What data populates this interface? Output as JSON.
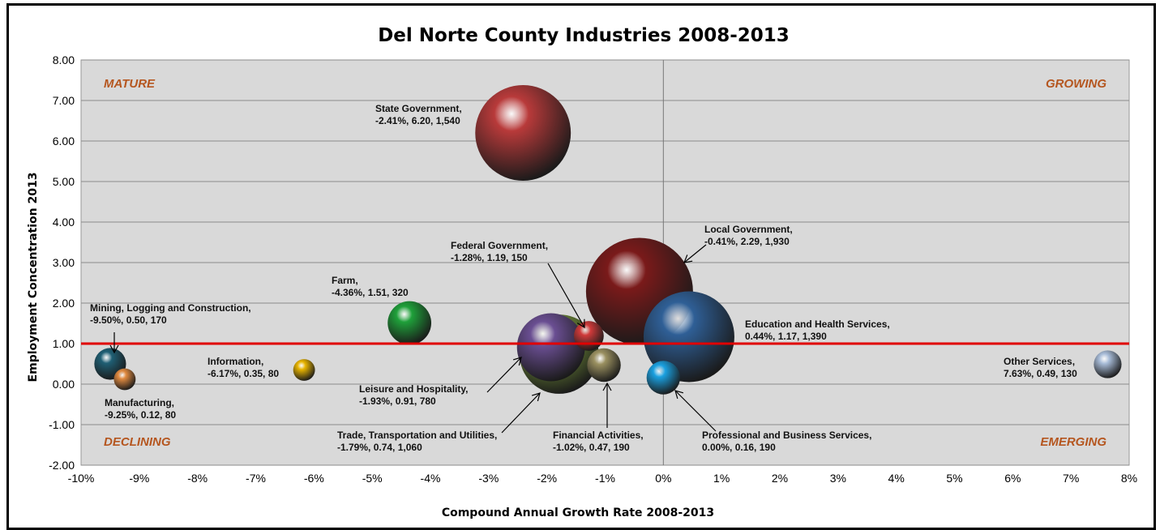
{
  "chart_data": {
    "type": "scatter",
    "title": "Del Norte County Industries 2008-2013",
    "xlabel": "Compound Annual Growth Rate 2008-2013",
    "ylabel": "Employment Concentration 2013",
    "xlim": [
      -10,
      8
    ],
    "ylim": [
      -2,
      8
    ],
    "x_ticks": [
      "-10%",
      "-9%",
      "-8%",
      "-7%",
      "-6%",
      "-5%",
      "-4%",
      "-3%",
      "-2%",
      "-1%",
      "0%",
      "1%",
      "2%",
      "3%",
      "4%",
      "5%",
      "6%",
      "7%",
      "8%"
    ],
    "y_ticks": [
      "-2.00",
      "-1.00",
      "0.00",
      "1.00",
      "2.00",
      "3.00",
      "4.00",
      "5.00",
      "6.00",
      "7.00",
      "8.00"
    ],
    "grid": "horizontal",
    "reference_line_y": 1.0,
    "reference_line_color": "#e00000",
    "plot_background": "#d9d9d9",
    "quadrants": {
      "top_left": "MATURE",
      "top_right": "GROWING",
      "bottom_left": "DECLINING",
      "bottom_right": "EMERGING"
    },
    "points": [
      {
        "name": "State Government",
        "x": -2.41,
        "y": 6.2,
        "size": 1540,
        "color": "#b83a3a",
        "label1": "State Government,",
        "label2": "-2.41%, 6.20, 1,540"
      },
      {
        "name": "Local Government",
        "x": -0.41,
        "y": 2.29,
        "size": 1930,
        "color": "#7a1a1a",
        "label1": "Local Government,",
        "label2": "-0.41%, 2.29, 1,930"
      },
      {
        "name": "Education and Health Services",
        "x": 0.44,
        "y": 1.17,
        "size": 1390,
        "color": "#2f5f96",
        "label1": "Education and Health Services,",
        "label2": "0.44%, 1.17, 1,390"
      },
      {
        "name": "Trade, Transportation and Utilities",
        "x": -1.79,
        "y": 0.74,
        "size": 1060,
        "color": "#7a9a3c",
        "label1": "Trade, Transportation and Utilities,",
        "label2": "-1.79%, 0.74, 1,060"
      },
      {
        "name": "Leisure and Hospitality",
        "x": -1.93,
        "y": 0.91,
        "size": 780,
        "color": "#6a4e92",
        "label1": "Leisure and Hospitality,",
        "label2": "-1.93%, 0.91, 780"
      },
      {
        "name": "Farm",
        "x": -4.36,
        "y": 1.51,
        "size": 320,
        "color": "#1fa03a",
        "label1": "Farm,",
        "label2": "-4.36%, 1.51, 320"
      },
      {
        "name": "Mining, Logging and Construction",
        "x": -9.5,
        "y": 0.5,
        "size": 170,
        "color": "#1f5f74",
        "label1": "Mining, Logging  and Construction,",
        "label2": "-9.50%, 0.50, 170"
      },
      {
        "name": "Federal Government",
        "x": -1.28,
        "y": 1.19,
        "size": 150,
        "color": "#d03a3a",
        "label1": "Federal Government,",
        "label2": "-1.28%, 1.19, 150"
      },
      {
        "name": "Financial Activities",
        "x": -1.02,
        "y": 0.47,
        "size": 190,
        "color": "#9a9060",
        "label1": "Financial Activities,",
        "label2": "-1.02%, 0.47, 190"
      },
      {
        "name": "Professional and Business Services",
        "x": 0.0,
        "y": 0.16,
        "size": 190,
        "color": "#1aa0e0",
        "label1": "Professional and Business Services,",
        "label2": "0.00%, 0.16, 190"
      },
      {
        "name": "Other Services",
        "x": 7.63,
        "y": 0.49,
        "size": 130,
        "color": "#a8bcd8",
        "label1": "Other Services,",
        "label2": "7.63%, 0.49, 130"
      },
      {
        "name": "Information",
        "x": -6.17,
        "y": 0.35,
        "size": 80,
        "color": "#e8b400",
        "label1": "Information,",
        "label2": "-6.17%, 0.35, 80"
      },
      {
        "name": "Manufacturing",
        "x": -9.25,
        "y": 0.12,
        "size": 80,
        "color": "#e08a40",
        "label1": "Manufacturing,",
        "label2": "-9.25%, 0.12, 80"
      }
    ]
  }
}
